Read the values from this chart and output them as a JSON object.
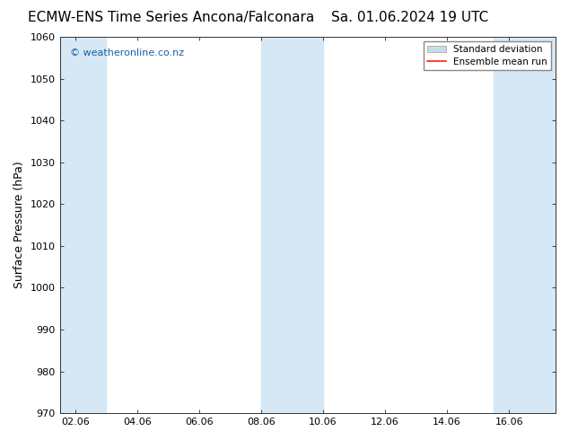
{
  "title_left": "ECMW-ENS Time Series Ancona/Falconara",
  "title_right": "Sa. 01.06.2024 19 UTC",
  "ylabel": "Surface Pressure (hPa)",
  "ylim": [
    970,
    1060
  ],
  "yticks": [
    970,
    980,
    990,
    1000,
    1010,
    1020,
    1030,
    1040,
    1050,
    1060
  ],
  "xtick_labels": [
    "02.06",
    "04.06",
    "06.06",
    "08.06",
    "10.06",
    "12.06",
    "14.06",
    "16.06"
  ],
  "xtick_positions": [
    2,
    4,
    6,
    8,
    10,
    12,
    14,
    16
  ],
  "xlim": [
    1.5,
    17.5
  ],
  "shaded_bands": [
    {
      "x_start": 1.5,
      "x_end": 3.0
    },
    {
      "x_start": 8.0,
      "x_end": 10.0
    },
    {
      "x_start": 15.5,
      "x_end": 17.5
    }
  ],
  "band_color": "#d6e8f5",
  "background_color": "#ffffff",
  "watermark": "© weatheronline.co.nz",
  "watermark_color": "#1a5fa8",
  "legend_std_label": "Standard deviation",
  "legend_mean_label": "Ensemble mean run",
  "legend_std_color": "#c8dce8",
  "legend_mean_color": "#ff2200",
  "title_fontsize": 11,
  "axis_label_fontsize": 9,
  "tick_fontsize": 8,
  "watermark_fontsize": 8,
  "legend_fontsize": 7.5
}
